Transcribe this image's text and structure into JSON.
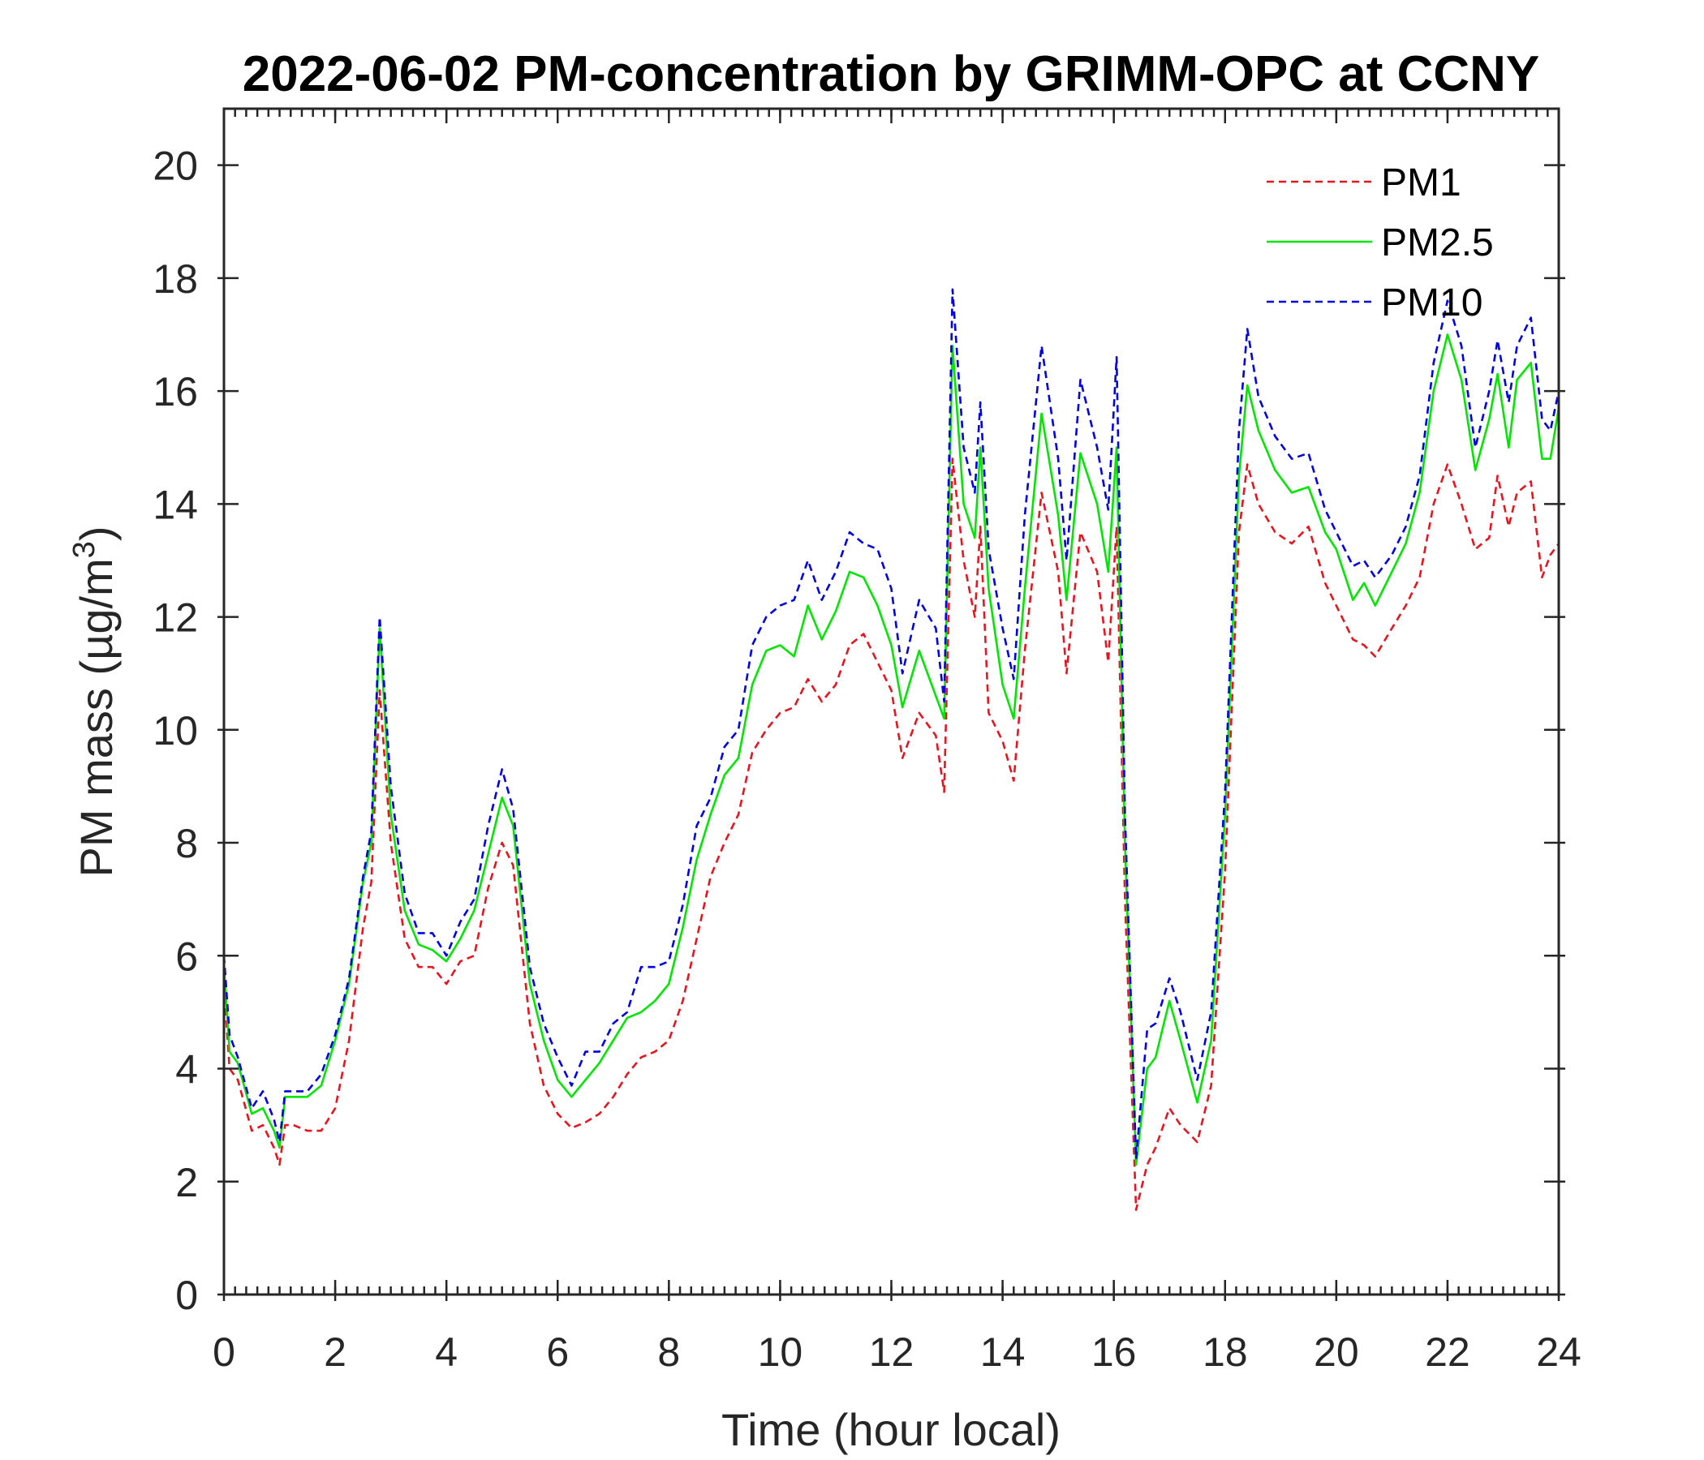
{
  "chart_data": {
    "type": "line",
    "title": "2022-06-02 PM-concentration by GRIMM-OPC at CCNY",
    "xlabel": "Time (hour local)",
    "ylabel": "PM mass (µg/m",
    "ylabel_superscript": "3",
    "ylabel_close": ")",
    "xlim": [
      0,
      24
    ],
    "ylim": [
      0,
      21
    ],
    "xticks": [
      0,
      2,
      4,
      6,
      8,
      10,
      12,
      14,
      16,
      18,
      20,
      22,
      24
    ],
    "yticks": [
      0,
      2,
      4,
      6,
      8,
      10,
      12,
      14,
      16,
      18,
      20
    ],
    "x_minor_step": 0.2,
    "grid": false,
    "legend_position": "top-right",
    "x": [
      0,
      0.1,
      0.25,
      0.5,
      0.7,
      0.9,
      1.0,
      1.1,
      1.25,
      1.5,
      1.75,
      2.0,
      2.25,
      2.5,
      2.65,
      2.8,
      3.0,
      3.25,
      3.5,
      3.75,
      4.0,
      4.25,
      4.5,
      4.75,
      5.0,
      5.2,
      5.5,
      5.75,
      6.0,
      6.25,
      6.5,
      6.75,
      7.0,
      7.25,
      7.5,
      7.75,
      8.0,
      8.25,
      8.5,
      8.75,
      9.0,
      9.25,
      9.5,
      9.75,
      10.0,
      10.25,
      10.5,
      10.75,
      11.0,
      11.25,
      11.5,
      11.75,
      12.0,
      12.2,
      12.5,
      12.8,
      12.95,
      13.1,
      13.3,
      13.5,
      13.6,
      13.75,
      14.0,
      14.2,
      14.4,
      14.7,
      15.0,
      15.15,
      15.4,
      15.7,
      15.9,
      16.05,
      16.2,
      16.4,
      16.6,
      16.75,
      17.0,
      17.2,
      17.5,
      17.75,
      18.0,
      18.25,
      18.4,
      18.6,
      18.9,
      19.2,
      19.5,
      19.8,
      20.0,
      20.3,
      20.5,
      20.7,
      21.0,
      21.25,
      21.5,
      21.75,
      22.0,
      22.25,
      22.5,
      22.75,
      22.9,
      23.1,
      23.25,
      23.5,
      23.7,
      23.85,
      24
    ],
    "series": [
      {
        "name": "PM1",
        "color": "#e8141e",
        "style": "dashed",
        "values": [
          5.5,
          4.0,
          3.8,
          2.9,
          3.0,
          2.6,
          2.3,
          3.0,
          3.0,
          2.9,
          2.9,
          3.3,
          4.5,
          6.5,
          7.3,
          10.7,
          8.0,
          6.3,
          5.8,
          5.8,
          5.5,
          5.9,
          6.0,
          7.2,
          8.0,
          7.6,
          4.8,
          3.7,
          3.2,
          2.95,
          3.05,
          3.2,
          3.5,
          3.9,
          4.2,
          4.3,
          4.5,
          5.2,
          6.3,
          7.4,
          8.0,
          8.5,
          9.6,
          10.0,
          10.3,
          10.4,
          10.9,
          10.5,
          10.8,
          11.5,
          11.7,
          11.2,
          10.7,
          9.5,
          10.3,
          9.9,
          8.9,
          14.8,
          13.0,
          12.0,
          13.6,
          10.3,
          9.8,
          9.1,
          11.4,
          14.2,
          12.8,
          11.0,
          13.5,
          12.8,
          11.2,
          13.6,
          7.0,
          1.5,
          2.3,
          2.6,
          3.3,
          3.0,
          2.7,
          3.7,
          7.5,
          13.5,
          14.7,
          14.0,
          13.5,
          13.3,
          13.6,
          12.6,
          12.2,
          11.6,
          11.5,
          11.3,
          11.8,
          12.2,
          12.7,
          14.0,
          14.7,
          14.0,
          13.2,
          13.4,
          14.5,
          13.6,
          14.2,
          14.4,
          12.7,
          13.1,
          13.3
        ]
      },
      {
        "name": "PM2.5",
        "color": "#00e600",
        "style": "solid",
        "values": [
          5.8,
          4.3,
          4.1,
          3.2,
          3.3,
          2.9,
          2.6,
          3.5,
          3.5,
          3.5,
          3.7,
          4.5,
          5.5,
          7.3,
          8.0,
          11.8,
          8.5,
          6.8,
          6.2,
          6.1,
          5.9,
          6.3,
          6.8,
          7.8,
          8.8,
          8.3,
          5.5,
          4.5,
          3.8,
          3.5,
          3.8,
          4.1,
          4.5,
          4.9,
          5.0,
          5.2,
          5.5,
          6.5,
          7.7,
          8.5,
          9.2,
          9.5,
          10.8,
          11.4,
          11.5,
          11.3,
          12.2,
          11.6,
          12.1,
          12.8,
          12.7,
          12.2,
          11.5,
          10.4,
          11.4,
          10.6,
          10.2,
          16.8,
          14.0,
          13.4,
          15.0,
          12.5,
          10.8,
          10.2,
          12.5,
          15.6,
          13.8,
          12.3,
          14.9,
          14.0,
          12.8,
          15.0,
          8.0,
          2.3,
          4.0,
          4.2,
          5.2,
          4.5,
          3.4,
          4.5,
          8.5,
          14.5,
          16.1,
          15.3,
          14.6,
          14.2,
          14.3,
          13.5,
          13.2,
          12.3,
          12.6,
          12.2,
          12.8,
          13.3,
          14.2,
          16.0,
          17.0,
          16.2,
          14.6,
          15.5,
          16.3,
          15.0,
          16.2,
          16.5,
          14.8,
          14.8,
          15.7
        ]
      },
      {
        "name": "PM10",
        "color": "#0000e6",
        "style": "dashed",
        "values": [
          6.0,
          4.6,
          4.2,
          3.3,
          3.6,
          3.1,
          2.7,
          3.6,
          3.6,
          3.6,
          3.9,
          4.6,
          5.6,
          7.4,
          8.2,
          12.0,
          9.0,
          7.1,
          6.4,
          6.4,
          6.0,
          6.6,
          7.0,
          8.3,
          9.3,
          8.6,
          5.8,
          4.8,
          4.2,
          3.7,
          4.3,
          4.3,
          4.8,
          5.0,
          5.8,
          5.8,
          5.9,
          6.9,
          8.3,
          8.8,
          9.7,
          10.0,
          11.5,
          12.0,
          12.2,
          12.3,
          13.0,
          12.3,
          12.8,
          13.5,
          13.3,
          13.2,
          12.5,
          11.0,
          12.3,
          11.8,
          10.5,
          17.8,
          15.0,
          14.2,
          15.8,
          13.2,
          11.8,
          10.9,
          13.8,
          16.8,
          14.8,
          13.0,
          16.2,
          15.0,
          13.9,
          16.6,
          8.5,
          2.4,
          4.7,
          4.8,
          5.6,
          5.0,
          3.8,
          5.0,
          8.9,
          15.3,
          17.1,
          15.9,
          15.2,
          14.8,
          14.9,
          13.9,
          13.5,
          12.9,
          13.0,
          12.7,
          13.1,
          13.6,
          14.5,
          16.5,
          17.6,
          16.8,
          15.0,
          16.0,
          16.9,
          15.8,
          16.8,
          17.3,
          15.5,
          15.3,
          16.0
        ]
      }
    ]
  }
}
